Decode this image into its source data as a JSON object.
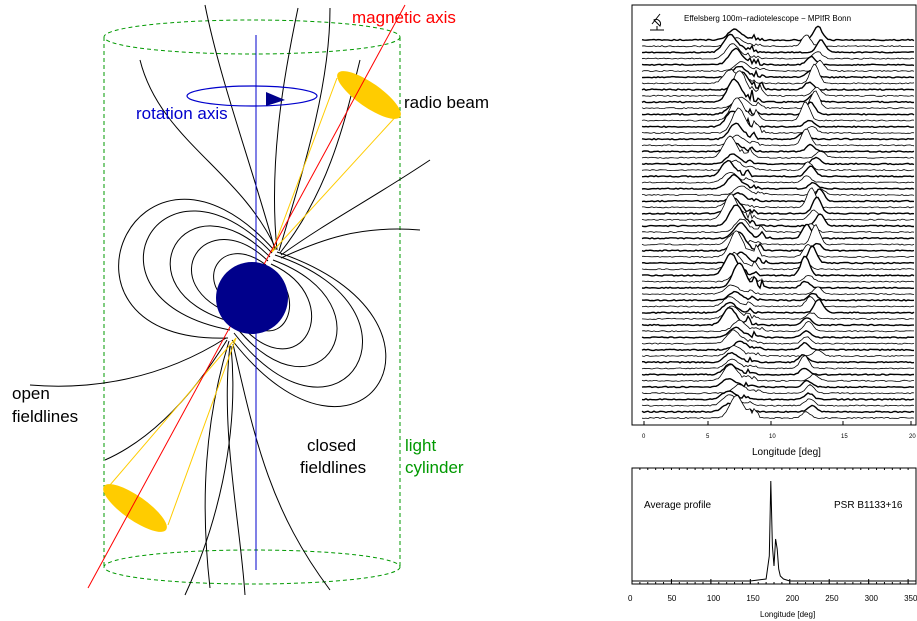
{
  "diagram": {
    "labels": {
      "magnetic_axis": "magnetic axis",
      "rotation_axis": "rotation axis",
      "radio_beam": "radio beam",
      "open_fieldlines_1": "open",
      "open_fieldlines_2": "fieldlines",
      "closed_fieldlines_1": "closed",
      "closed_fieldlines_2": "fieldlines",
      "light_cylinder_1": "light",
      "light_cylinder_2": "cylinder"
    },
    "colors": {
      "magnetic_axis": "#ff0000",
      "rotation_axis": "#0000cc",
      "light_cylinder": "#009900",
      "neutron_star": "#00008b",
      "beam": "#ffcc00",
      "fieldlines": "#000000"
    }
  },
  "pulse_stack": {
    "header": "Effelsberg 100m−radiotelescope   −   MPIfR Bonn",
    "xlabel": "Longitude [deg]",
    "x_ticks": [
      "0",
      "5",
      "10",
      "15",
      "20"
    ],
    "n_pulses": 62
  },
  "chart_data": {
    "type": "line",
    "title": "",
    "annotation_left": "Average profile",
    "annotation_right": "PSR B1133+16",
    "xlabel": "Longitude [deg]",
    "ylabel": "",
    "xlim": [
      0,
      360
    ],
    "x_ticks": [
      "0",
      "50",
      "100",
      "150",
      "200",
      "250",
      "300",
      "350"
    ],
    "x": [
      0,
      150,
      170,
      174,
      176,
      178,
      180,
      182,
      184,
      186,
      188,
      192,
      200,
      250,
      360
    ],
    "values": [
      0,
      0,
      0.02,
      0.25,
      1.0,
      0.35,
      0.15,
      0.42,
      0.32,
      0.12,
      0.05,
      0.02,
      0,
      0,
      0
    ]
  }
}
